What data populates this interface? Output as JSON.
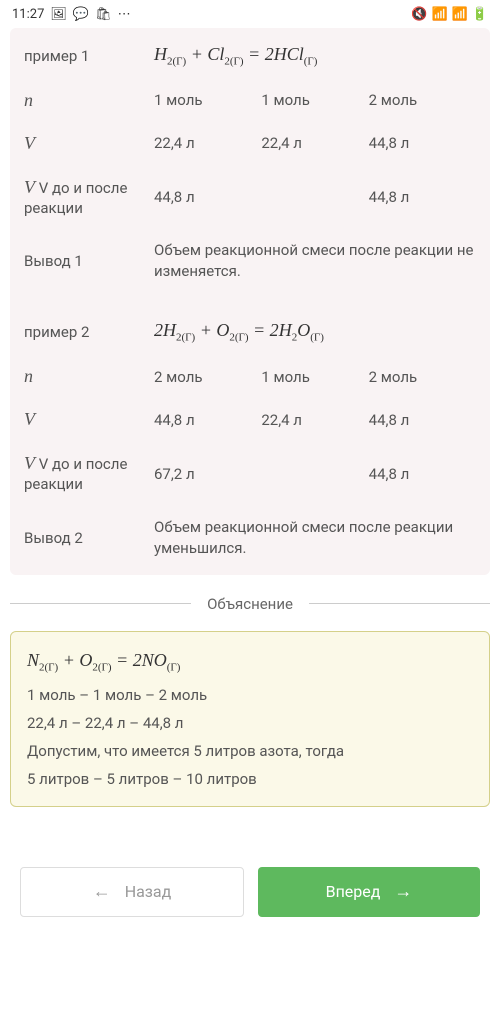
{
  "statusBar": {
    "time": "11:27",
    "leftIcons": [
      "🖼",
      "💬",
      "🛍",
      "⋯"
    ],
    "rightIcons": [
      "🔇",
      "📶",
      "📶",
      "🔋"
    ]
  },
  "example1": {
    "label": "пример 1",
    "equation": "H₂₍г₎ + Cl₂₍г₎ = 2HCl₍г₎",
    "nLabel": "n",
    "nValues": [
      "1 моль",
      "1 моль",
      "2 моль"
    ],
    "vLabel": "V",
    "vValues": [
      "22,4 л",
      "22,4 л",
      "44,8 л"
    ],
    "vBeforeAfterLabel1": "V до и после",
    "vBeforeAfterLabel2": "реакции",
    "vBeforeAfter": [
      "44,8 л",
      "44,8 л"
    ],
    "conclusionLabel": "Вывод 1",
    "conclusion": "Объем реакционной смеси после реакции не изменяется."
  },
  "example2": {
    "label": "пример 2",
    "equation": "2H₂₍г₎ + O₂₍г₎ = 2H₂O₍г₎",
    "nLabel": "n",
    "nValues": [
      "2 моль",
      "1 моль",
      "2 моль"
    ],
    "vLabel": "V",
    "vValues": [
      "44,8 л",
      "22,4 л",
      "44,8 л"
    ],
    "vBeforeAfterLabel1": "V до и после",
    "vBeforeAfterLabel2": "реакции",
    "vBeforeAfter": [
      "67,2 л",
      "44,8 л"
    ],
    "conclusionLabel": "Вывод 2",
    "conclusion": "Объем реакционной смеси после реакции уменьшился."
  },
  "explanation": {
    "title": "Объяснение",
    "equation": "N₂₍г₎ + O₂₍г₎ = 2NO₍г₎",
    "line1": "1 моль – 1 моль – 2 моль",
    "line2": "22,4 л – 22,4 л – 44,8 л",
    "line3": "Допустим, что имеется 5 литров азота, тогда",
    "line4": "5 литров – 5 литров – 10 литров"
  },
  "nav": {
    "back": "Назад",
    "forward": "Вперед"
  },
  "colors": {
    "exampleBg": "#f9f3f4",
    "explainBg": "#fbf9e8",
    "explainBorder": "#d4d08a",
    "forwardBtn": "#5eb95e",
    "backBorder": "#dddddd",
    "textMain": "#555555"
  }
}
